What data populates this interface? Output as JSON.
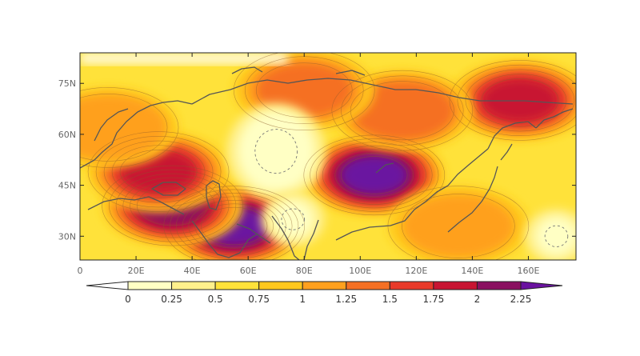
{
  "map": {
    "lon_range": [
      0,
      177
    ],
    "lat_range": [
      23,
      84
    ],
    "y_ticks": [
      {
        "lat": 75,
        "label": "75N"
      },
      {
        "lat": 60,
        "label": "60N"
      },
      {
        "lat": 45,
        "label": "45N"
      },
      {
        "lat": 30,
        "label": "30N"
      }
    ],
    "x_ticks": [
      {
        "lon": 0,
        "label": "0"
      },
      {
        "lon": 20,
        "label": "20E"
      },
      {
        "lon": 40,
        "label": "40E"
      },
      {
        "lon": 60,
        "label": "60E"
      },
      {
        "lon": 80,
        "label": "80E"
      },
      {
        "lon": 100,
        "label": "100E"
      },
      {
        "lon": 120,
        "label": "120E"
      },
      {
        "lon": 140,
        "label": "140E"
      },
      {
        "lon": 160,
        "label": "160E"
      }
    ],
    "hotspots": [
      {
        "lon": 105,
        "lat": 48,
        "value": 2.3
      },
      {
        "lon": 55,
        "lat": 33,
        "value": 2.3
      },
      {
        "lon": 33,
        "lat": 39,
        "value": 2.1
      },
      {
        "lon": 28,
        "lat": 49,
        "value": 1.8
      },
      {
        "lon": 157,
        "lat": 70,
        "value": 1.8
      },
      {
        "lon": 115,
        "lat": 67,
        "value": 1.5
      },
      {
        "lon": 80,
        "lat": 73,
        "value": 1.3
      },
      {
        "lon": 10,
        "lat": 62,
        "value": 1.2
      },
      {
        "lon": 135,
        "lat": 33,
        "value": 1.1
      }
    ],
    "cold_spots": [
      {
        "lon": 70,
        "lat": 55,
        "value": 0.0
      },
      {
        "lon": 76,
        "lat": 35,
        "value": 0.0
      },
      {
        "lon": 170,
        "lat": 30,
        "value": 0.1
      }
    ]
  },
  "colorbar": {
    "levels": [
      0,
      0.25,
      0.5,
      0.75,
      1,
      1.25,
      1.5,
      1.75,
      2,
      2.25
    ],
    "labels": [
      "0",
      "0.25",
      "0.5",
      "0.75",
      "1",
      "1.25",
      "1.5",
      "1.75",
      "2",
      "2.25"
    ],
    "colors": [
      "#ffffff",
      "#ffffc4",
      "#fff08c",
      "#ffe23a",
      "#ffc81e",
      "#ffa01e",
      "#f57024",
      "#e83a2a",
      "#c81432",
      "#8a1060",
      "#6a12a0"
    ]
  }
}
